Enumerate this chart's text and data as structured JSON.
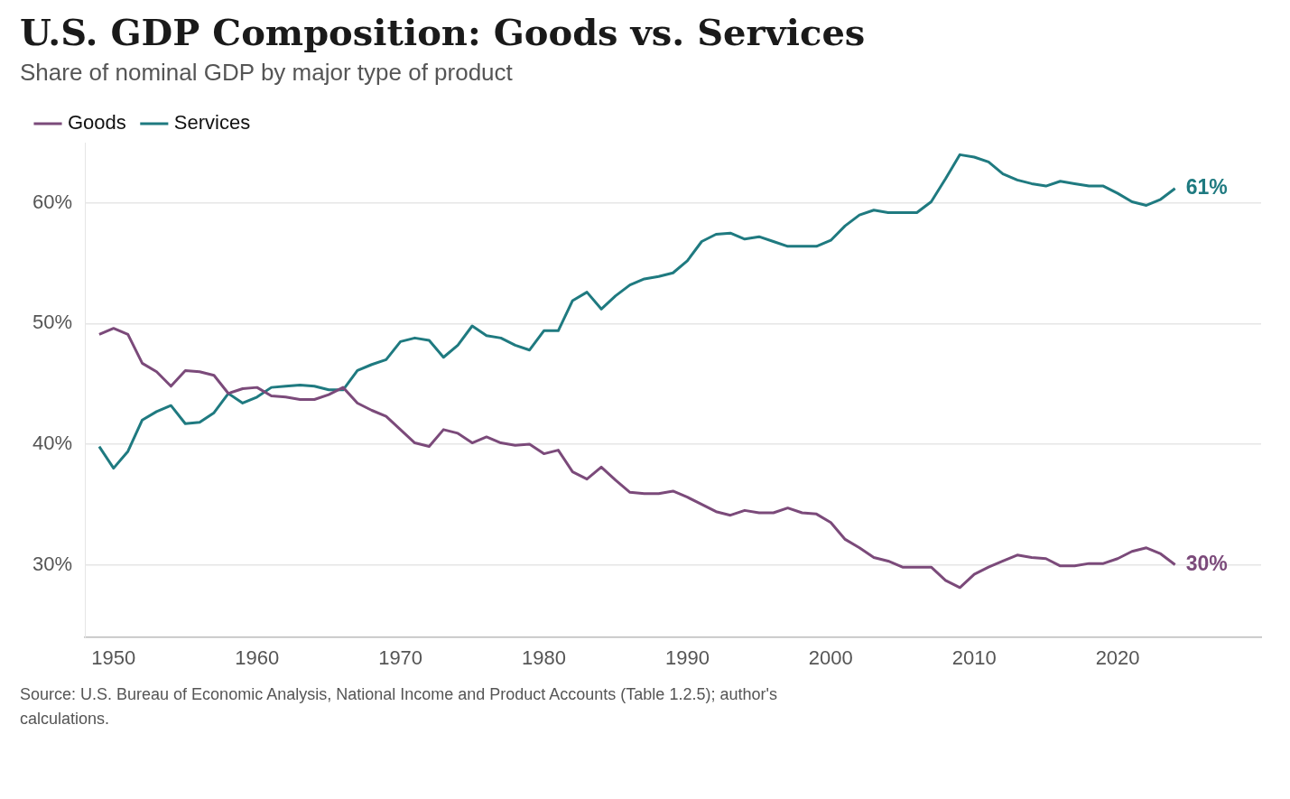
{
  "chart_data": {
    "type": "line",
    "title": "U.S. GDP Composition: Goods vs. Services",
    "subtitle": "Share of nominal GDP by major type of product",
    "x": [
      1949,
      1950,
      1951,
      1952,
      1953,
      1954,
      1955,
      1956,
      1957,
      1958,
      1959,
      1960,
      1961,
      1962,
      1963,
      1964,
      1965,
      1966,
      1967,
      1968,
      1969,
      1970,
      1971,
      1972,
      1973,
      1974,
      1975,
      1976,
      1977,
      1978,
      1979,
      1980,
      1981,
      1982,
      1983,
      1984,
      1985,
      1986,
      1987,
      1988,
      1989,
      1990,
      1991,
      1992,
      1993,
      1994,
      1995,
      1996,
      1997,
      1998,
      1999,
      2000,
      2001,
      2002,
      2003,
      2004,
      2005,
      2006,
      2007,
      2008,
      2009,
      2010,
      2011,
      2012,
      2013,
      2014,
      2015,
      2016,
      2017,
      2018,
      2019,
      2020,
      2021,
      2022,
      2023,
      2024
    ],
    "series": [
      {
        "name": "Goods",
        "color": "#7b4a7a",
        "values": [
          49.1,
          49.6,
          49.1,
          46.7,
          46.0,
          44.8,
          46.1,
          46.0,
          45.7,
          44.2,
          44.6,
          44.7,
          44.0,
          43.9,
          43.7,
          43.7,
          44.1,
          44.7,
          43.4,
          42.8,
          42.3,
          41.2,
          40.1,
          39.8,
          41.2,
          40.9,
          40.1,
          40.6,
          40.1,
          39.9,
          40.0,
          39.2,
          39.5,
          37.7,
          37.1,
          38.1,
          37.0,
          36.0,
          35.9,
          35.9,
          36.1,
          35.6,
          35.0,
          34.4,
          34.1,
          34.5,
          34.3,
          34.3,
          34.7,
          34.3,
          34.2,
          33.5,
          32.1,
          31.4,
          30.6,
          30.3,
          29.8,
          29.8,
          29.8,
          28.7,
          28.1,
          29.2,
          29.8,
          30.3,
          30.8,
          30.6,
          30.5,
          29.9,
          29.9,
          30.1,
          30.1,
          30.5,
          31.1,
          31.4,
          30.9,
          30.0
        ]
      },
      {
        "name": "Services",
        "color": "#1f7a80",
        "values": [
          39.8,
          38.0,
          39.4,
          42.0,
          42.7,
          43.2,
          41.7,
          41.8,
          42.6,
          44.2,
          43.4,
          43.9,
          44.7,
          44.8,
          44.9,
          44.8,
          44.5,
          44.5,
          46.1,
          46.6,
          47.0,
          48.5,
          48.8,
          48.6,
          47.2,
          48.2,
          49.8,
          49.0,
          48.8,
          48.2,
          47.8,
          49.4,
          49.4,
          51.9,
          52.6,
          51.2,
          52.3,
          53.2,
          53.7,
          53.9,
          54.2,
          55.2,
          56.8,
          57.4,
          57.5,
          57.0,
          57.2,
          56.8,
          56.4,
          56.4,
          56.4,
          56.9,
          58.1,
          59.0,
          59.4,
          59.2,
          59.2,
          59.2,
          60.1,
          62.0,
          64.0,
          63.8,
          63.4,
          62.4,
          61.9,
          61.6,
          61.4,
          61.8,
          61.6,
          61.4,
          61.4,
          60.8,
          60.1,
          59.8,
          60.3,
          61.2
        ]
      }
    ],
    "xlim": [
      1948,
      2030
    ],
    "xticks": [
      1950,
      1960,
      1970,
      1980,
      1990,
      2000,
      2010,
      2020
    ],
    "ylim": [
      24,
      65
    ],
    "yticks": [
      {
        "value": 30,
        "label": "30%"
      },
      {
        "value": 40,
        "label": "40%"
      },
      {
        "value": 50,
        "label": "50%"
      },
      {
        "value": 60,
        "label": "60%"
      }
    ],
    "grid": "y",
    "legend": "top left",
    "marker": "none",
    "line_style": "solid",
    "annotations": [
      {
        "text": "61%",
        "x": 2024,
        "y": 61.2
      },
      {
        "text": "30%",
        "x": 2024,
        "y": 30.0
      },
      "Source: U.S. Bureau of Economic Analysis, National Income and Product Accounts (Table 1.2.5); author's calculations."
    ]
  }
}
